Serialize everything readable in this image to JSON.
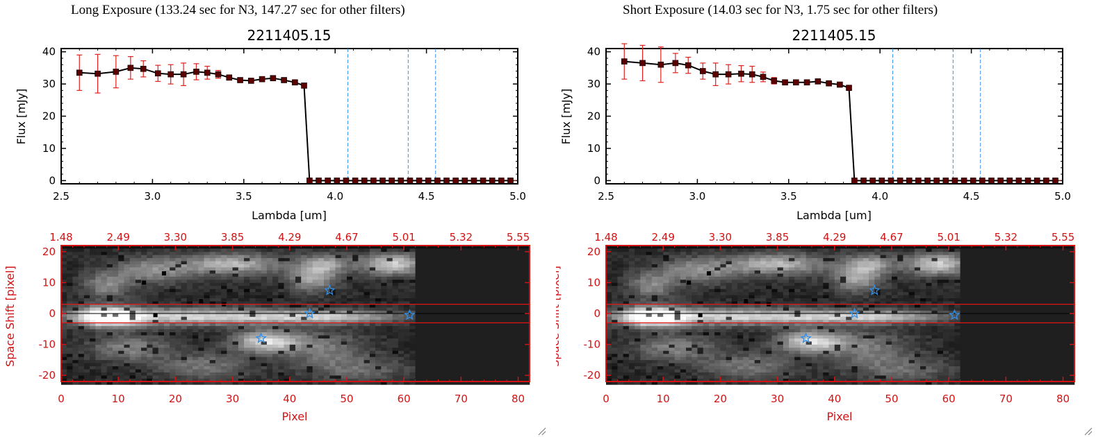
{
  "panels": [
    {
      "exposure_title": "Long Exposure (133.24 sec for N3, 147.27 sec for other filters)",
      "object_id": "2211405.15",
      "spectrum": {
        "xlabel": "Lambda [um]",
        "ylabel": "Flux [mJy]",
        "xticks": [
          "2.5",
          "3.0",
          "3.5",
          "4.0",
          "4.5",
          "5.0"
        ],
        "yticks": [
          "0",
          "10",
          "20",
          "30",
          "40"
        ]
      },
      "image": {
        "xlabel": "Pixel",
        "ylabel": "Space Shift [pixel]",
        "xticks": [
          "0",
          "10",
          "20",
          "30",
          "40",
          "50",
          "60",
          "70",
          "80"
        ],
        "yticks": [
          "-20",
          "-10",
          "0",
          "10",
          "20"
        ],
        "top_ticks": [
          "1.48",
          "2.49",
          "3.30",
          "3.85",
          "4.29",
          "4.67",
          "5.01",
          "5.32",
          "5.55"
        ]
      }
    },
    {
      "exposure_title": "Short Exposure (14.03 sec for N3, 1.75 sec for other filters)",
      "object_id": "2211405.15",
      "spectrum": {
        "xlabel": "Lambda [um]",
        "ylabel": "Flux [mJy]",
        "xticks": [
          "2.5",
          "3.0",
          "3.5",
          "4.0",
          "4.5",
          "5.0"
        ],
        "yticks": [
          "0",
          "10",
          "20",
          "30",
          "40"
        ]
      },
      "image": {
        "xlabel": "Pixel",
        "ylabel": "Space Shift [pixel]",
        "xticks": [
          "0",
          "10",
          "20",
          "30",
          "40",
          "50",
          "60",
          "70",
          "80"
        ],
        "yticks": [
          "-20",
          "-10",
          "0",
          "10",
          "20"
        ],
        "top_ticks": [
          "1.48",
          "2.49",
          "3.30",
          "3.85",
          "4.29",
          "4.67",
          "5.01",
          "5.32",
          "5.55"
        ]
      }
    }
  ],
  "colors": {
    "line": "#000000",
    "error_bar": "#e0201c",
    "marker": "#5a0000",
    "filter_line": "#2e8ee8",
    "image_axis": "#d31313",
    "aperture": "#e01515",
    "star": "#2e8ee8"
  },
  "chart_data": [
    {
      "type": "line",
      "panel": "long_exposure",
      "title": "2211405.15",
      "xlabel": "Lambda [um]",
      "ylabel": "Flux [mJy]",
      "xlim": [
        2.5,
        5.0
      ],
      "ylim": [
        -1,
        41
      ],
      "x": [
        2.6,
        2.7,
        2.8,
        2.88,
        2.95,
        3.03,
        3.1,
        3.17,
        3.24,
        3.3,
        3.36,
        3.42,
        3.48,
        3.54,
        3.6,
        3.66,
        3.72,
        3.78,
        3.83,
        3.86,
        3.91,
        3.96,
        4.01,
        4.06,
        4.11,
        4.16,
        4.21,
        4.26,
        4.31,
        4.36,
        4.41,
        4.46,
        4.51,
        4.56,
        4.61,
        4.66,
        4.71,
        4.76,
        4.81,
        4.86,
        4.91,
        4.96
      ],
      "series": [
        {
          "values": [
            33.5,
            33.2,
            33.8,
            35.0,
            34.7,
            33.3,
            33.0,
            33.0,
            33.8,
            33.5,
            33.0,
            32.0,
            31.2,
            31.0,
            31.5,
            31.8,
            31.2,
            30.5,
            29.5,
            0,
            0,
            0,
            0,
            0,
            0,
            0,
            0,
            0,
            0,
            0,
            0,
            0,
            0,
            0,
            0,
            0,
            0,
            0,
            0,
            0,
            0,
            0
          ],
          "errors": [
            5.5,
            6.0,
            5.0,
            3.5,
            2.5,
            2.5,
            3.0,
            3.5,
            2.5,
            2.0,
            1.2,
            0.8,
            0.5,
            0.5,
            0.5,
            0.5,
            0.5,
            0.5,
            0.5,
            0,
            0,
            0,
            0,
            0,
            0,
            0,
            0,
            0,
            0,
            0,
            0,
            0,
            0,
            0,
            0,
            0,
            0,
            0,
            0,
            0,
            0,
            0
          ]
        }
      ],
      "filter_lines_x": [
        4.07,
        4.4,
        4.55
      ],
      "grid": false
    },
    {
      "type": "line",
      "panel": "short_exposure",
      "title": "2211405.15",
      "xlabel": "Lambda [um]",
      "ylabel": "Flux [mJy]",
      "xlim": [
        2.5,
        5.0
      ],
      "ylim": [
        -1,
        41
      ],
      "x": [
        2.6,
        2.7,
        2.8,
        2.88,
        2.95,
        3.03,
        3.1,
        3.17,
        3.24,
        3.3,
        3.36,
        3.42,
        3.48,
        3.54,
        3.6,
        3.66,
        3.72,
        3.78,
        3.83,
        3.86,
        3.91,
        3.96,
        4.01,
        4.06,
        4.11,
        4.16,
        4.21,
        4.26,
        4.31,
        4.36,
        4.41,
        4.46,
        4.51,
        4.56,
        4.61,
        4.66,
        4.71,
        4.76,
        4.81,
        4.86,
        4.91,
        4.96
      ],
      "series": [
        {
          "values": [
            37.0,
            36.5,
            36.0,
            36.5,
            35.8,
            34.0,
            33.0,
            33.0,
            33.2,
            33.0,
            32.2,
            31.0,
            30.5,
            30.5,
            30.5,
            30.8,
            30.2,
            29.8,
            28.8,
            0,
            0,
            0,
            0,
            0,
            0,
            0,
            0,
            0,
            0,
            0,
            0,
            0,
            0,
            0,
            0,
            0,
            0,
            0,
            0,
            0,
            0,
            0
          ],
          "errors": [
            5.5,
            5.5,
            5.5,
            3.0,
            2.5,
            2.5,
            3.5,
            3.0,
            2.5,
            2.5,
            1.5,
            1.0,
            0.5,
            0.5,
            0.5,
            0.5,
            0.5,
            0.5,
            0.5,
            0,
            0,
            0,
            0,
            0,
            0,
            0,
            0,
            0,
            0,
            0,
            0,
            0,
            0,
            0,
            0,
            0,
            0,
            0,
            0,
            0,
            0,
            0
          ]
        }
      ],
      "filter_lines_x": [
        4.07,
        4.4,
        4.55
      ],
      "grid": false
    },
    {
      "type": "heatmap",
      "panel": "long_exposure",
      "xlabel": "Pixel",
      "ylabel": "Space Shift [pixel]",
      "xlim": [
        0,
        82
      ],
      "ylim": [
        -22,
        22
      ],
      "top_axis_ticks": [
        "1.48",
        "2.49",
        "3.30",
        "3.85",
        "4.29",
        "4.67",
        "5.01",
        "5.32",
        "5.55"
      ],
      "aperture_y": [
        -3,
        3
      ],
      "stars": [
        [
          47,
          7.5
        ],
        [
          43.5,
          0
        ],
        [
          61,
          -0.5
        ],
        [
          35,
          -8
        ]
      ],
      "masked_from_pixel": 62.5
    },
    {
      "type": "heatmap",
      "panel": "short_exposure",
      "xlabel": "Pixel",
      "ylabel": "Space Shift [pixel]",
      "xlim": [
        0,
        82
      ],
      "ylim": [
        -22,
        22
      ],
      "top_axis_ticks": [
        "1.48",
        "2.49",
        "3.30",
        "3.85",
        "4.29",
        "4.67",
        "5.01",
        "5.32",
        "5.55"
      ],
      "aperture_y": [
        -3,
        3
      ],
      "stars": [
        [
          47,
          7.5
        ],
        [
          43.5,
          0
        ],
        [
          61,
          -0.5
        ],
        [
          35,
          -8
        ]
      ],
      "masked_from_pixel": 62.5
    }
  ]
}
